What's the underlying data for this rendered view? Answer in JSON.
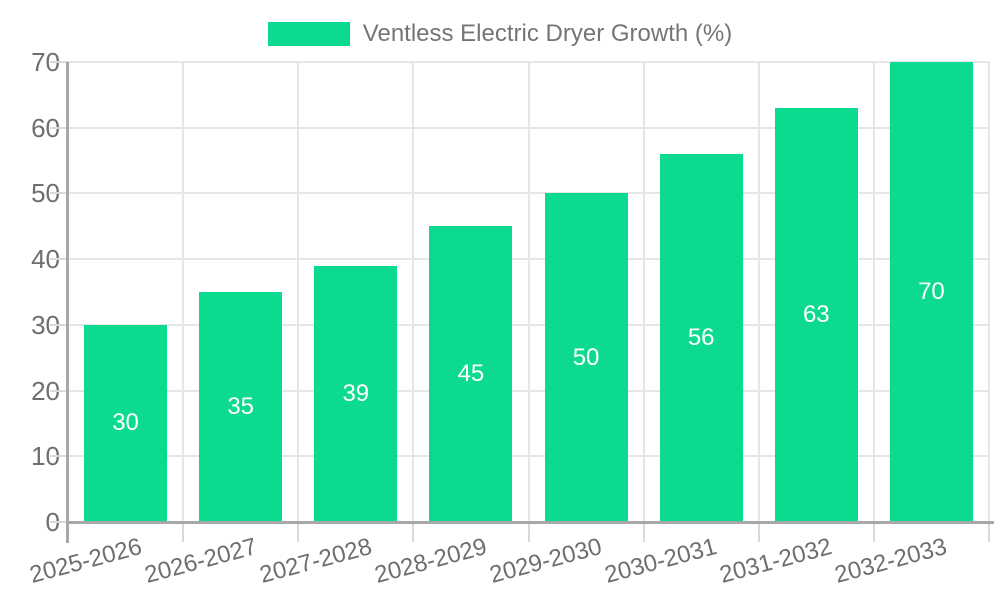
{
  "chart_data": {
    "type": "bar",
    "title": "Ventless Electric Dryer Growth (%)",
    "categories": [
      "2025-2026",
      "2026-2027",
      "2027-2028",
      "2028-2029",
      "2029-2030",
      "2030-2031",
      "2031-2032",
      "2032-2033"
    ],
    "values": [
      30,
      35,
      39,
      45,
      50,
      56,
      63,
      70
    ],
    "xlabel": "",
    "ylabel": "",
    "ylim": [
      0,
      70
    ],
    "yticks": [
      0,
      10,
      20,
      30,
      40,
      50,
      60,
      70
    ],
    "grid": true,
    "legend_position": "top-center",
    "show_value_labels": true,
    "value_labels": [
      "30",
      "35",
      "39",
      "45",
      "50",
      "56",
      "63",
      "70"
    ]
  },
  "legend": {
    "items": [
      {
        "label": "Ventless Electric Dryer Growth (%)",
        "color": "#0cdb8f"
      }
    ]
  },
  "colors": {
    "bar": "#0cdb8f",
    "axis_line": "#a8a8a8",
    "grid_line": "#e6e6e6",
    "tick": "#d9d9d9",
    "tick_label": "#6e6e6e",
    "legend_text": "#757575",
    "value_label": "#ffffff",
    "background": "#ffffff"
  }
}
